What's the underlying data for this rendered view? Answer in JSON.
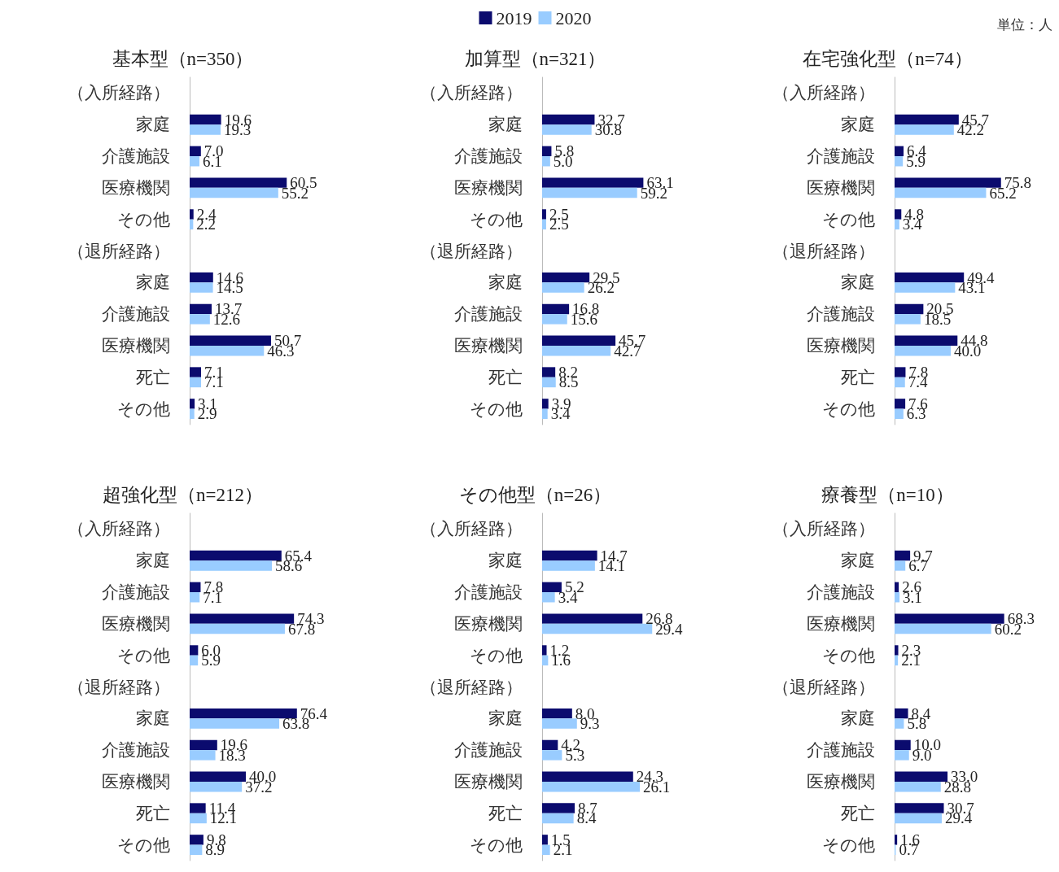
{
  "chart_data": [
    {
      "type": "bar",
      "orientation": "horizontal",
      "title": "基本型（n=350）",
      "categories": [
        "（入所経路）",
        "家庭",
        "介護施設",
        "医療機関",
        "その他",
        "（退所経路）",
        "家庭",
        "介護施設",
        "医療機関",
        "死亡",
        "その他"
      ],
      "series": [
        {
          "color": "#0b0b6e",
          "values": [
            null,
            19.6,
            7.0,
            60.5,
            2.4,
            null,
            14.6,
            13.7,
            50.7,
            7.1,
            3.1
          ],
          "value_labels": [
            null,
            "19.6",
            "7.0",
            "60.5",
            "2.4",
            null,
            "14.6",
            "13.7",
            "50.7",
            "7.1",
            "3.1"
          ]
        },
        {
          "color": "#99ccff",
          "values": [
            null,
            19.3,
            6.1,
            55.2,
            2.2,
            null,
            14.5,
            12.6,
            46.3,
            7.1,
            2.9
          ],
          "value_labels": [
            null,
            "19.3",
            "6.1",
            "55.2",
            "2.2",
            null,
            "14.5",
            "12.6",
            "46.3",
            "7.1",
            "2.9"
          ]
        }
      ]
    },
    {
      "type": "bar",
      "orientation": "horizontal",
      "title": "加算型（n=321）",
      "legend": "top",
      "categories": [
        "（入所経路）",
        "家庭",
        "介護施設",
        "医療機関",
        "その他",
        "（退所経路）",
        "家庭",
        "介護施設",
        "医療機関",
        "死亡",
        "その他"
      ],
      "series": [
        {
          "name": "2019",
          "color": "#0b0b6e",
          "values": [
            null,
            32.7,
            5.8,
            63.1,
            2.5,
            null,
            29.5,
            16.8,
            45.7,
            8.2,
            3.9
          ],
          "value_labels": [
            null,
            "32.7",
            "5.8",
            "63.1",
            "2.5",
            null,
            "29.5",
            "16.8",
            "45.7",
            "8.2",
            "3.9"
          ]
        },
        {
          "name": "2020",
          "color": "#99ccff",
          "values": [
            null,
            30.8,
            5.0,
            59.2,
            2.5,
            null,
            26.2,
            15.6,
            42.7,
            8.5,
            3.4
          ],
          "value_labels": [
            null,
            "30.8",
            "5.0",
            "59.2",
            "2.5",
            null,
            "26.2",
            "15.6",
            "42.7",
            "8.5",
            "3.4"
          ]
        }
      ]
    },
    {
      "type": "bar",
      "orientation": "horizontal",
      "title": "在宅強化型（n=74）",
      "annotations": [
        "単位：人"
      ],
      "categories": [
        "（入所経路）",
        "家庭",
        "介護施設",
        "医療機関",
        "その他",
        "（退所経路）",
        "家庭",
        "介護施設",
        "医療機関",
        "死亡",
        "その他"
      ],
      "series": [
        {
          "color": "#0b0b6e",
          "values": [
            null,
            45.7,
            6.4,
            75.8,
            4.8,
            null,
            49.4,
            20.5,
            44.8,
            7.8,
            7.6
          ],
          "value_labels": [
            null,
            "45.7",
            "6.4",
            "75.8",
            "4.8",
            null,
            "49.4",
            "20.5",
            "44.8",
            "7.8",
            "7.6"
          ]
        },
        {
          "color": "#99ccff",
          "values": [
            null,
            42.2,
            5.9,
            65.2,
            3.4,
            null,
            43.1,
            18.5,
            40.0,
            7.4,
            6.3
          ],
          "value_labels": [
            null,
            "42.2",
            "5.9",
            "65.2",
            "3.4",
            null,
            "43.1",
            "18.5",
            "40.0",
            "7.4",
            "6.3"
          ]
        }
      ]
    },
    {
      "type": "bar",
      "orientation": "horizontal",
      "title": "超強化型（n=212）",
      "categories": [
        "（入所経路）",
        "家庭",
        "介護施設",
        "医療機関",
        "その他",
        "（退所経路）",
        "家庭",
        "介護施設",
        "医療機関",
        "死亡",
        "その他"
      ],
      "series": [
        {
          "color": "#0b0b6e",
          "values": [
            null,
            65.4,
            7.8,
            74.3,
            6.0,
            null,
            76.4,
            19.6,
            40.0,
            11.4,
            9.8
          ],
          "value_labels": [
            null,
            "65.4",
            "7.8",
            "74.3",
            "6.0",
            null,
            "76.4",
            "19.6",
            "40.0",
            "11.4",
            "9.8"
          ]
        },
        {
          "color": "#99ccff",
          "values": [
            null,
            58.6,
            7.1,
            67.8,
            5.9,
            null,
            63.8,
            18.3,
            37.2,
            12.1,
            8.9
          ],
          "value_labels": [
            null,
            "58.6",
            "7.1",
            "67.8",
            "5.9",
            null,
            "63.8",
            "18.3",
            "37.2",
            "12.1",
            "8.9"
          ]
        }
      ]
    },
    {
      "type": "bar",
      "orientation": "horizontal",
      "title": "その他型（n=26）",
      "categories": [
        "（入所経路）",
        "家庭",
        "介護施設",
        "医療機関",
        "その他",
        "（退所経路）",
        "家庭",
        "介護施設",
        "医療機関",
        "死亡",
        "その他"
      ],
      "series": [
        {
          "color": "#0b0b6e",
          "values": [
            null,
            14.7,
            5.2,
            26.8,
            1.2,
            null,
            8.0,
            4.2,
            24.3,
            8.7,
            1.5
          ],
          "value_labels": [
            null,
            "14.7",
            "5.2",
            "26.8",
            "1.2",
            null,
            "8.0",
            "4.2",
            "24.3",
            "8.7",
            "1.5"
          ]
        },
        {
          "color": "#99ccff",
          "values": [
            null,
            14.1,
            3.4,
            29.4,
            1.6,
            null,
            9.3,
            5.3,
            26.1,
            8.4,
            2.1
          ],
          "value_labels": [
            null,
            "14.1",
            "3.4",
            "29.4",
            "1.6",
            null,
            "9.3",
            "5.3",
            "26.1",
            "8.4",
            "2.1"
          ]
        }
      ]
    },
    {
      "type": "bar",
      "orientation": "horizontal",
      "title": "療養型（n=10）",
      "categories": [
        "（入所経路）",
        "家庭",
        "介護施設",
        "医療機関",
        "その他",
        "（退所経路）",
        "家庭",
        "介護施設",
        "医療機関",
        "死亡",
        "その他"
      ],
      "series": [
        {
          "color": "#0b0b6e",
          "values": [
            null,
            9.7,
            2.6,
            68.3,
            2.3,
            null,
            8.4,
            10.0,
            33.0,
            30.7,
            1.6
          ],
          "value_labels": [
            null,
            "9.7",
            "2.6",
            "68.3",
            "2.3",
            null,
            "8.4",
            "10.0",
            "33.0",
            "30.7",
            "1.6"
          ]
        },
        {
          "color": "#99ccff",
          "values": [
            null,
            6.7,
            3.1,
            60.2,
            2.1,
            null,
            5.8,
            9.0,
            28.8,
            29.4,
            0.7
          ],
          "value_labels": [
            null,
            "6.7",
            "3.1",
            "60.2",
            "2.1",
            null,
            "5.8",
            "9.0",
            "28.8",
            "29.4",
            "0.7"
          ]
        }
      ]
    }
  ]
}
